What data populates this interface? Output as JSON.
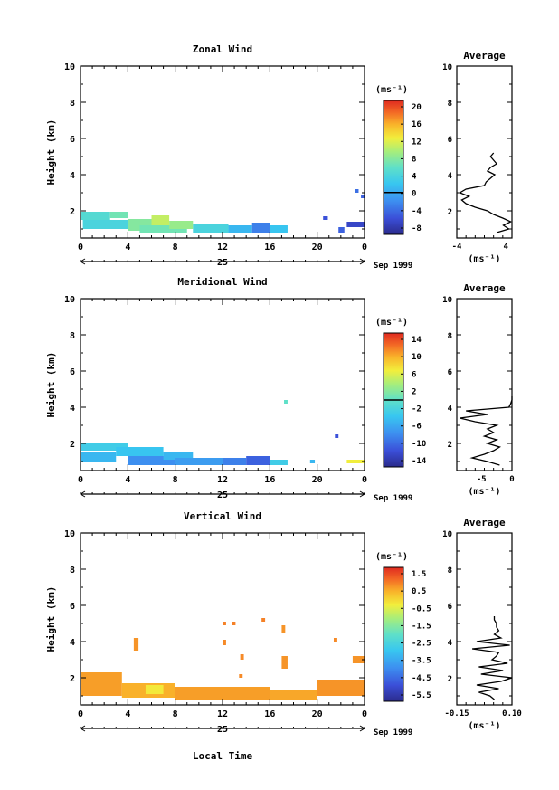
{
  "chart_data": [
    {
      "type": "heatmap",
      "title": "Zonal Wind",
      "ylabel": "Height (km)",
      "xlabel": "",
      "ylim": [
        0.5,
        10
      ],
      "xlim": [
        0,
        24
      ],
      "x_ticks": [
        "0",
        "4",
        "8",
        "12",
        "16",
        "20",
        "0"
      ],
      "y_ticks": [
        "2",
        "4",
        "6",
        "8",
        "10"
      ],
      "date_day": "25",
      "date_label": "Sep 1999",
      "colorbar": {
        "unit": "(ms⁻¹)",
        "ticks": [
          "20",
          "16",
          "12",
          "8",
          "4",
          "0",
          "-4",
          "-8"
        ],
        "min": -10,
        "max": 22,
        "zero_line": 0
      },
      "cells": [
        {
          "t0": 0.0,
          "t1": 2.5,
          "h0": 1.5,
          "h1": 1.95,
          "v": 5
        },
        {
          "t0": 2.5,
          "t1": 4.0,
          "h0": 1.6,
          "h1": 1.95,
          "v": 7
        },
        {
          "t0": 0.2,
          "t1": 4.0,
          "h0": 1.0,
          "h1": 1.5,
          "v": 4
        },
        {
          "t0": 4.0,
          "t1": 6.0,
          "h0": 0.9,
          "h1": 1.55,
          "v": 8
        },
        {
          "t0": 6.0,
          "t1": 7.5,
          "h0": 1.2,
          "h1": 1.75,
          "v": 11
        },
        {
          "t0": 5.0,
          "t1": 9.0,
          "h0": 0.8,
          "h1": 1.2,
          "v": 7
        },
        {
          "t0": 7.5,
          "t1": 9.5,
          "h0": 1.0,
          "h1": 1.45,
          "v": 9
        },
        {
          "t0": 9.5,
          "t1": 12.5,
          "h0": 0.8,
          "h1": 1.25,
          "v": 4
        },
        {
          "t0": 12.5,
          "t1": 14.5,
          "h0": 0.8,
          "h1": 1.2,
          "v": 1
        },
        {
          "t0": 14.5,
          "t1": 16.0,
          "h0": 0.8,
          "h1": 1.35,
          "v": -3
        },
        {
          "t0": 16.0,
          "t1": 17.5,
          "h0": 0.8,
          "h1": 1.2,
          "v": 2
        },
        {
          "t0": 20.5,
          "t1": 20.9,
          "h0": 1.5,
          "h1": 1.7,
          "v": -6
        },
        {
          "t0": 21.8,
          "t1": 22.3,
          "h0": 0.8,
          "h1": 1.1,
          "v": -5
        },
        {
          "t0": 22.5,
          "t1": 24.0,
          "h0": 1.1,
          "h1": 1.4,
          "v": -7
        },
        {
          "t0": 23.2,
          "t1": 23.5,
          "h0": 3.0,
          "h1": 3.2,
          "v": -4
        },
        {
          "t0": 23.7,
          "t1": 24.0,
          "h0": 2.7,
          "h1": 2.9,
          "v": -5
        }
      ],
      "profile": {
        "title": "Average",
        "xlabel": "(ms⁻¹)",
        "xlim": [
          -4,
          5
        ],
        "x_ticks": [
          "-4",
          "4"
        ],
        "height": [
          0.8,
          1.0,
          1.2,
          1.4,
          1.6,
          1.8,
          2.0,
          2.2,
          2.4,
          2.6,
          2.8,
          3.0,
          3.2,
          3.4,
          3.6,
          3.8,
          4.0,
          4.2,
          4.4,
          4.6,
          4.8,
          5.0,
          5.2
        ],
        "value": [
          2.5,
          4.5,
          3.6,
          4.8,
          3.5,
          2.0,
          1.0,
          -1.0,
          -2.5,
          -3.2,
          -2.0,
          -3.5,
          -2.5,
          0.5,
          0.8,
          1.5,
          2.2,
          1.0,
          1.5,
          2.5,
          2.0,
          1.5,
          2.0
        ]
      }
    },
    {
      "type": "heatmap",
      "title": "Meridional Wind",
      "ylabel": "Height (km)",
      "xlabel": "",
      "ylim": [
        0.5,
        10
      ],
      "xlim": [
        0,
        24
      ],
      "x_ticks": [
        "0",
        "4",
        "8",
        "12",
        "16",
        "20",
        "0"
      ],
      "y_ticks": [
        "2",
        "4",
        "6",
        "8",
        "10"
      ],
      "date_day": "25",
      "date_label": "Sep 1999",
      "colorbar": {
        "unit": "(ms⁻¹)",
        "ticks": [
          "14",
          "10",
          "6",
          "2",
          "-2",
          "-6",
          "-10",
          "-14"
        ],
        "min": -16,
        "max": 16,
        "zero_line": 0
      },
      "cells": [
        {
          "t0": 0.0,
          "t1": 4.0,
          "h0": 1.6,
          "h1": 2.0,
          "v": -3
        },
        {
          "t0": 0.0,
          "t1": 3.0,
          "h0": 1.0,
          "h1": 1.5,
          "v": -5
        },
        {
          "t0": 3.0,
          "t1": 7.0,
          "h0": 1.3,
          "h1": 1.8,
          "v": -4
        },
        {
          "t0": 4.0,
          "t1": 8.0,
          "h0": 0.8,
          "h1": 1.3,
          "v": -8
        },
        {
          "t0": 7.0,
          "t1": 9.5,
          "h0": 1.1,
          "h1": 1.5,
          "v": -5
        },
        {
          "t0": 8.0,
          "t1": 12.0,
          "h0": 0.8,
          "h1": 1.2,
          "v": -7
        },
        {
          "t0": 12.0,
          "t1": 14.0,
          "h0": 0.8,
          "h1": 1.2,
          "v": -9
        },
        {
          "t0": 14.0,
          "t1": 16.0,
          "h0": 0.8,
          "h1": 1.3,
          "v": -11
        },
        {
          "t0": 16.0,
          "t1": 17.5,
          "h0": 0.8,
          "h1": 1.1,
          "v": -3
        },
        {
          "t0": 17.2,
          "t1": 17.5,
          "h0": 4.2,
          "h1": 4.4,
          "v": 0
        },
        {
          "t0": 19.4,
          "t1": 19.8,
          "h0": 0.9,
          "h1": 1.1,
          "v": -5
        },
        {
          "t0": 21.5,
          "t1": 21.8,
          "h0": 2.3,
          "h1": 2.5,
          "v": -12
        },
        {
          "t0": 22.5,
          "t1": 24.0,
          "h0": 0.9,
          "h1": 1.1,
          "v": 7
        }
      ],
      "profile": {
        "title": "Average",
        "xlabel": "(ms⁻¹)",
        "xlim": [
          -9,
          0
        ],
        "x_ticks": [
          "-5",
          "0"
        ],
        "height": [
          0.8,
          1.0,
          1.2,
          1.4,
          1.6,
          1.8,
          2.0,
          2.2,
          2.4,
          2.6,
          2.8,
          3.0,
          3.2,
          3.4,
          3.6,
          3.8,
          4.0,
          4.2,
          4.4,
          4.6
        ],
        "value": [
          -2.0,
          -4.0,
          -6.5,
          -4.5,
          -3.0,
          -2.0,
          -4.0,
          -2.5,
          -4.5,
          -3.0,
          -4.0,
          -2.5,
          -6.0,
          -8.5,
          -4.0,
          -7.5,
          -0.5,
          -0.2,
          0.0,
          0.0
        ]
      }
    },
    {
      "type": "heatmap",
      "title": "Vertical Wind",
      "ylabel": "Height (km)",
      "xlabel": "Local Time",
      "ylim": [
        0.5,
        10
      ],
      "xlim": [
        0,
        24
      ],
      "x_ticks": [
        "0",
        "4",
        "8",
        "12",
        "16",
        "20",
        "0"
      ],
      "y_ticks": [
        "2",
        "4",
        "6",
        "8",
        "10"
      ],
      "date_day": "25",
      "date_label": "Sep 1999",
      "colorbar": {
        "unit": "(ms⁻¹)",
        "ticks": [
          "1.5",
          "0.5",
          "-0.5",
          "-1.5",
          "-2.5",
          "-3.5",
          "-4.5",
          "-5.5"
        ],
        "min": -6.5,
        "max": 2.0,
        "zero_line": null
      },
      "cells": [
        {
          "t0": 0.0,
          "t1": 3.5,
          "h0": 1.0,
          "h1": 2.3,
          "v": 0.7
        },
        {
          "t0": 3.5,
          "t1": 8.0,
          "h0": 0.9,
          "h1": 1.7,
          "v": 0.5
        },
        {
          "t0": 5.5,
          "t1": 7.0,
          "h0": 1.1,
          "h1": 1.6,
          "v": -0.3
        },
        {
          "t0": 8.0,
          "t1": 16.0,
          "h0": 0.8,
          "h1": 1.5,
          "v": 0.7
        },
        {
          "t0": 16.0,
          "t1": 20.0,
          "h0": 0.8,
          "h1": 1.3,
          "v": 0.6
        },
        {
          "t0": 20.0,
          "t1": 24.0,
          "h0": 1.0,
          "h1": 1.9,
          "v": 0.8
        },
        {
          "t0": 4.5,
          "t1": 4.9,
          "h0": 3.5,
          "h1": 4.2,
          "v": 0.8
        },
        {
          "t0": 12.0,
          "t1": 12.3,
          "h0": 4.9,
          "h1": 5.1,
          "v": 1.0
        },
        {
          "t0": 12.8,
          "t1": 13.1,
          "h0": 4.9,
          "h1": 5.1,
          "v": 1.0
        },
        {
          "t0": 15.3,
          "t1": 15.6,
          "h0": 5.1,
          "h1": 5.3,
          "v": 1.0
        },
        {
          "t0": 17.0,
          "t1": 17.3,
          "h0": 4.5,
          "h1": 4.9,
          "v": 0.8
        },
        {
          "t0": 12.0,
          "t1": 12.3,
          "h0": 3.8,
          "h1": 4.1,
          "v": 0.9
        },
        {
          "t0": 13.5,
          "t1": 13.8,
          "h0": 3.0,
          "h1": 3.3,
          "v": 0.9
        },
        {
          "t0": 17.0,
          "t1": 17.5,
          "h0": 2.5,
          "h1": 3.2,
          "v": 0.8
        },
        {
          "t0": 21.4,
          "t1": 21.7,
          "h0": 4.0,
          "h1": 4.2,
          "v": 0.9
        },
        {
          "t0": 23.0,
          "t1": 24.0,
          "h0": 2.8,
          "h1": 3.2,
          "v": 0.8
        },
        {
          "t0": 13.4,
          "t1": 13.7,
          "h0": 2.0,
          "h1": 2.2,
          "v": 0.9
        }
      ],
      "profile": {
        "title": "Average",
        "xlabel": "(ms⁻¹)",
        "xlim": [
          -0.15,
          0.1
        ],
        "x_ticks": [
          "-0.15",
          "0.10"
        ],
        "height": [
          0.8,
          1.0,
          1.2,
          1.4,
          1.6,
          1.8,
          2.0,
          2.2,
          2.4,
          2.6,
          2.8,
          3.0,
          3.2,
          3.4,
          3.6,
          3.8,
          4.0,
          4.2,
          4.4,
          4.6,
          4.8,
          5.0,
          5.2,
          5.4
        ],
        "value": [
          0.02,
          0.0,
          -0.05,
          0.04,
          -0.06,
          0.05,
          0.1,
          -0.04,
          0.06,
          -0.05,
          0.08,
          0.01,
          0.03,
          0.04,
          -0.08,
          0.09,
          -0.06,
          0.05,
          0.02,
          0.04,
          0.03,
          0.03,
          0.02,
          0.02
        ]
      }
    }
  ]
}
